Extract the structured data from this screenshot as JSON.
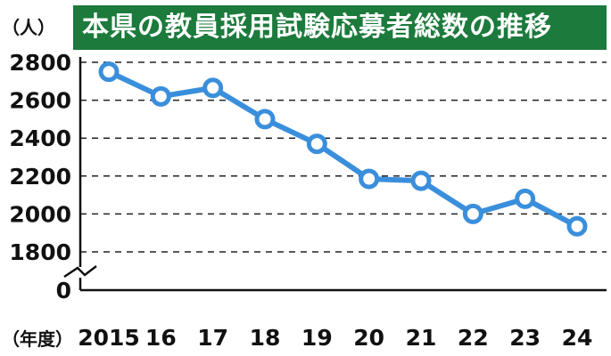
{
  "title": "本県の教員採用試験応募者総数の推移",
  "y_unit_label": "（人）",
  "x_unit_label": "（年度）",
  "colors": {
    "title_bg": "#1c7a3c",
    "line": "#3a8fdc",
    "title_text": "#ffffff"
  },
  "chart_data": {
    "type": "line",
    "title": "本県の教員採用試験応募者総数の推移",
    "xlabel": "（年度）",
    "ylabel": "（人）",
    "categories": [
      "2015",
      "16",
      "17",
      "18",
      "19",
      "20",
      "21",
      "22",
      "23",
      "24"
    ],
    "values": [
      2750,
      2620,
      2665,
      2500,
      2370,
      2185,
      2175,
      2000,
      2080,
      1935
    ],
    "y_ticks": [
      0,
      1800,
      2000,
      2200,
      2400,
      2600,
      2800
    ],
    "ylim": [
      1800,
      2800
    ],
    "axis_break": true,
    "grid": "horizontal dashed"
  }
}
